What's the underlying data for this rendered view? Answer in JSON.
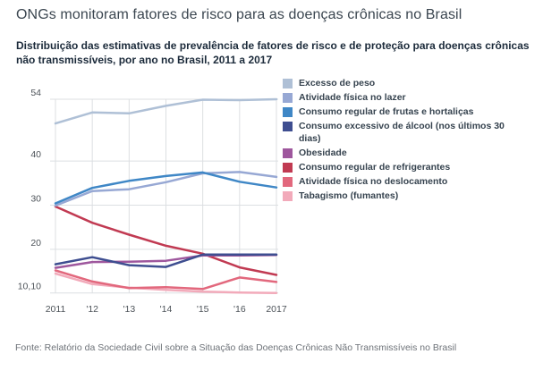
{
  "header": {
    "title": "ONGs monitoram fatores de risco para as doenças crônicas no Brasil",
    "subtitle": "Distribuição das estimativas de prevalência de fatores de risco e de proteção para doenças crônicas não transmissíveis, por ano no Brasil, 2011 a 2017"
  },
  "source": "Fonte: Relatório da Sociedade Civil sobre a Situação das Doenças Crônicas Não Transmissíveis no Brasil",
  "colors": {
    "background": "#ffffff",
    "title_text": "#3b4650",
    "subtitle_text": "#1b2a3a",
    "legend_text": "#36434f",
    "axis_text": "#4d5359",
    "gridline": "#dcdfe2",
    "source_text": "#6d7278"
  },
  "chart_data": {
    "type": "line",
    "title": "Distribuição das estimativas de prevalência de fatores de risco e de proteção para doenças crônicas não transmissíveis, por ano no Brasil, 2011 a 2017",
    "x": [
      2011,
      2012,
      2013,
      2014,
      2015,
      2016,
      2017
    ],
    "x_tick_labels": [
      "2011",
      "'12",
      "'13",
      "'14",
      "'15",
      "'16",
      "2017"
    ],
    "y_tick_labels": [
      "54",
      "40",
      "30",
      "20",
      "10,10"
    ],
    "y_tick_values": [
      54,
      40,
      30,
      20,
      10.1
    ],
    "ylim": [
      10.1,
      54
    ],
    "xlabel": "",
    "ylabel": "",
    "grid": true,
    "legend_position": "right",
    "series": [
      {
        "name": "Excesso de peso",
        "slug": "excesso-de-peso",
        "color": "#afc0d6",
        "values": [
          48.5,
          51.0,
          50.8,
          52.5,
          53.9,
          53.8,
          54.0
        ]
      },
      {
        "name": "Atividade física no lazer",
        "slug": "atividade-fisica-no-lazer",
        "color": "#97a8d4",
        "values": [
          29.9,
          33.2,
          33.6,
          35.2,
          37.2,
          37.5,
          36.4
        ]
      },
      {
        "name": "Consumo regular de frutas e hortaliças",
        "slug": "frutas-e-hortalicas",
        "color": "#3f87c6",
        "values": [
          30.4,
          33.9,
          35.5,
          36.6,
          37.4,
          35.3,
          34.0
        ]
      },
      {
        "name": "Consumo excessivo de álcool (nos últimos 30 dias)",
        "slug": "consumo-excessivo-alcool",
        "color": "#3e4e90",
        "values": [
          16.6,
          18.2,
          16.4,
          16.0,
          18.8,
          18.8,
          18.8
        ]
      },
      {
        "name": "Obesidade",
        "slug": "obesidade",
        "color": "#9e579d",
        "values": [
          15.8,
          17.1,
          17.2,
          17.4,
          18.6,
          18.6,
          18.7
        ]
      },
      {
        "name": "Consumo regular de refrigerantes",
        "slug": "refrigerantes",
        "color": "#c13a52",
        "values": [
          29.7,
          26.0,
          23.3,
          20.8,
          19.0,
          15.9,
          14.2
        ]
      },
      {
        "name": "Atividade física no deslocamento",
        "slug": "atividade-fisica-no-deslocamento",
        "color": "#e2687d",
        "values": [
          15.2,
          12.7,
          11.2,
          11.4,
          11.0,
          13.6,
          12.6
        ]
      },
      {
        "name": "Tabagismo (fumantes)",
        "slug": "tabagismo",
        "color": "#f2aaba",
        "values": [
          14.5,
          12.1,
          11.3,
          10.8,
          10.4,
          10.2,
          10.1
        ]
      }
    ]
  }
}
